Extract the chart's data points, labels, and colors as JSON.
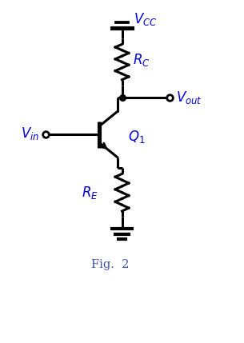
{
  "background_color": "#ffffff",
  "line_color": "#000000",
  "label_color": "#0000dd",
  "fig_label_color": "#4455aa",
  "vcc_label": "$\\mathit{V}_{CC}$",
  "rc_label": "$\\mathit{R}_C$",
  "vout_label": "$\\mathit{V}_{out}$",
  "vin_label": "$\\mathit{V}_{in}$",
  "q1_label": "$\\mathit{Q}_1$",
  "re_label": "$\\mathit{R}_E$",
  "fig_caption": "Fig.  2",
  "figsize": [
    3.05,
    4.29
  ],
  "dpi": 100,
  "xlim": [
    0,
    10
  ],
  "ylim": [
    0,
    14
  ]
}
